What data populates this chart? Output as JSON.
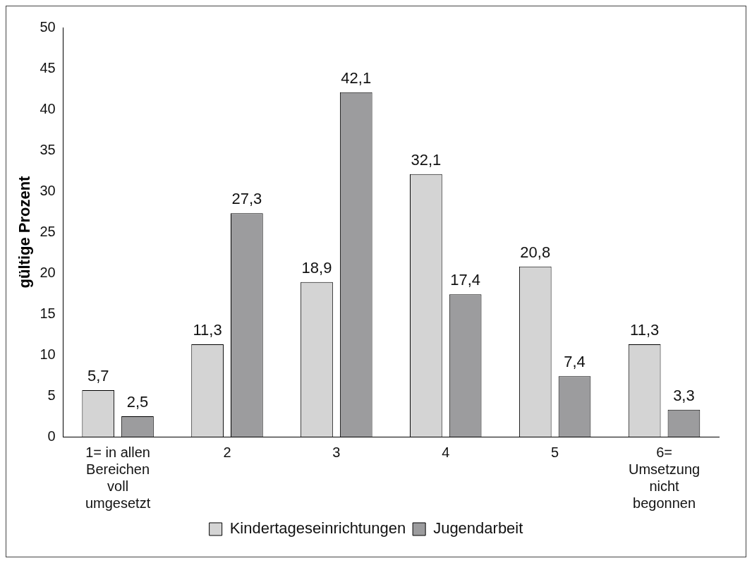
{
  "chart_data": {
    "type": "bar",
    "ylabel": "gültige Prozent",
    "categories": [
      "1= in allen Bereichen voll umgesetzt",
      "2",
      "3",
      "4",
      "5",
      "6= Umsetzung nicht begonnen"
    ],
    "series": [
      {
        "name": "Kindertageseinrichtungen",
        "color": "#d4d4d4",
        "values": [
          5.7,
          11.3,
          18.9,
          32.1,
          20.8,
          11.3
        ],
        "value_labels": [
          "5,7",
          "11,3",
          "18,9",
          "32,1",
          "20,8",
          "11,3"
        ]
      },
      {
        "name": "Jugendarbeit",
        "color": "#9c9c9e",
        "values": [
          2.5,
          27.3,
          42.1,
          17.4,
          7.4,
          3.3
        ],
        "value_labels": [
          "2,5",
          "27,3",
          "42,1",
          "17,4",
          "7,4",
          "3,3"
        ]
      }
    ],
    "ylim": [
      0,
      50
    ],
    "yticks": [
      0,
      5,
      10,
      15,
      20,
      25,
      30,
      35,
      40,
      45,
      50
    ],
    "grid": false,
    "legend": "bottom"
  }
}
